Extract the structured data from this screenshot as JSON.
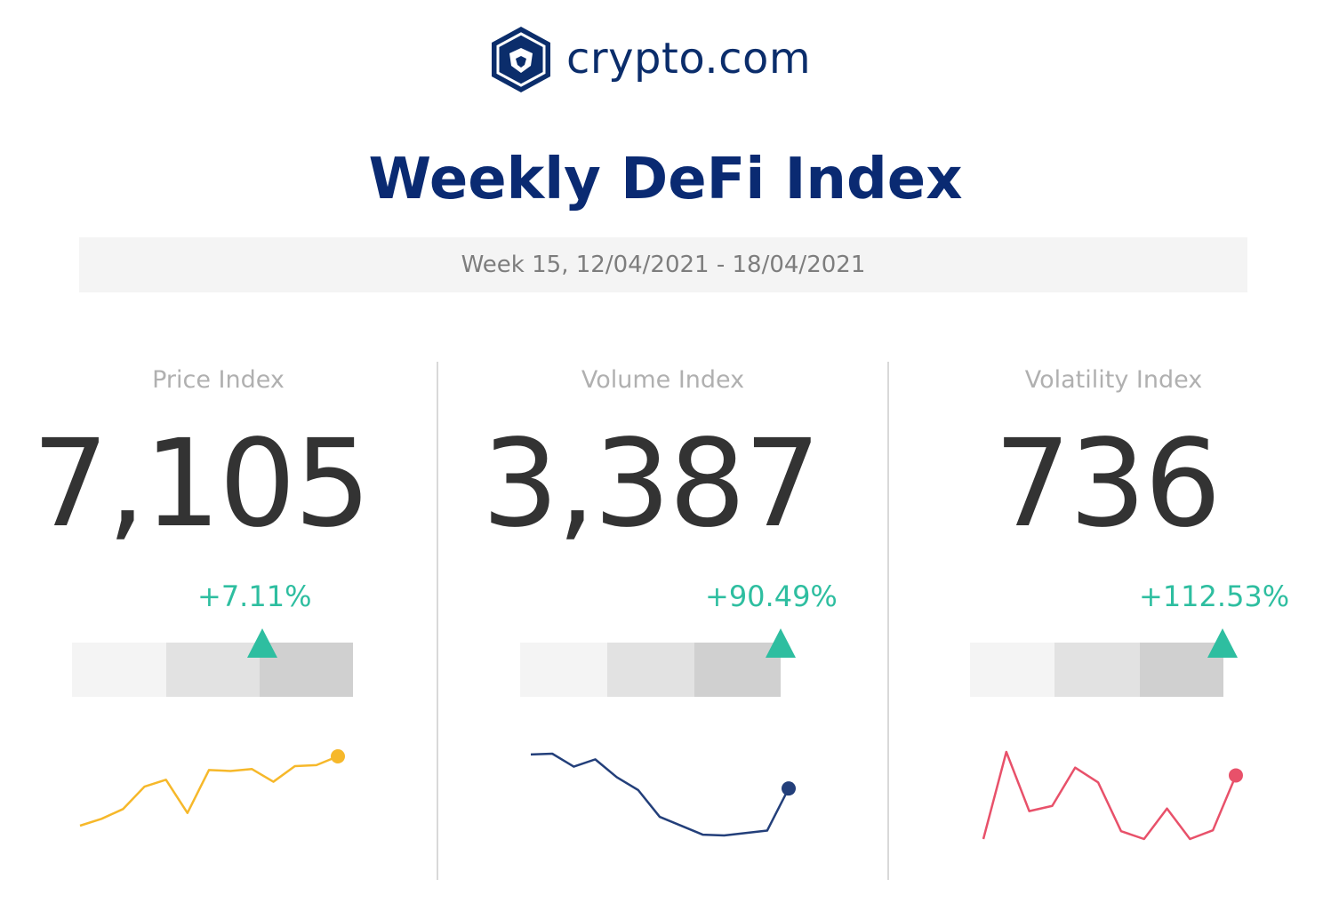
{
  "brand": {
    "name": "crypto.com",
    "logo_icon": "lion-shield-icon",
    "color": "#0b2d6b"
  },
  "title": "Weekly DeFi Index",
  "week_label": "Week 15, 12/04/2021 - 18/04/2021",
  "colors": {
    "positive": "#2ebea0",
    "price_line": "#f6b82a",
    "volume_line": "#233f7a",
    "volatility_line": "#e8516a"
  },
  "panels": [
    {
      "label": "Price Index",
      "value": "7,105",
      "change": "+7.11%",
      "gauge_position": 0.72,
      "direction_icon": "up-triangle-icon"
    },
    {
      "label": "Volume Index",
      "value": "3,387",
      "change": "+90.49%",
      "gauge_position": 0.95,
      "direction_icon": "up-triangle-icon"
    },
    {
      "label": "Volatility Index",
      "value": "736",
      "change": "+112.53%",
      "gauge_position": 0.95,
      "direction_icon": "up-triangle-icon"
    }
  ],
  "chart_data": [
    {
      "type": "line",
      "name": "Price Index sparkline",
      "y": [
        5,
        12,
        22,
        45,
        52,
        18,
        62,
        61,
        63,
        50,
        66,
        67,
        76
      ]
    },
    {
      "type": "line",
      "name": "Volume Index sparkline",
      "y": [
        100,
        101,
        85,
        94,
        72,
        56,
        23,
        12,
        1,
        0,
        3,
        6,
        58
      ]
    },
    {
      "type": "line",
      "name": "Volatility Index sparkline",
      "y": [
        0,
        100,
        32,
        38,
        82,
        65,
        9,
        0,
        35,
        0,
        10,
        73
      ]
    }
  ]
}
